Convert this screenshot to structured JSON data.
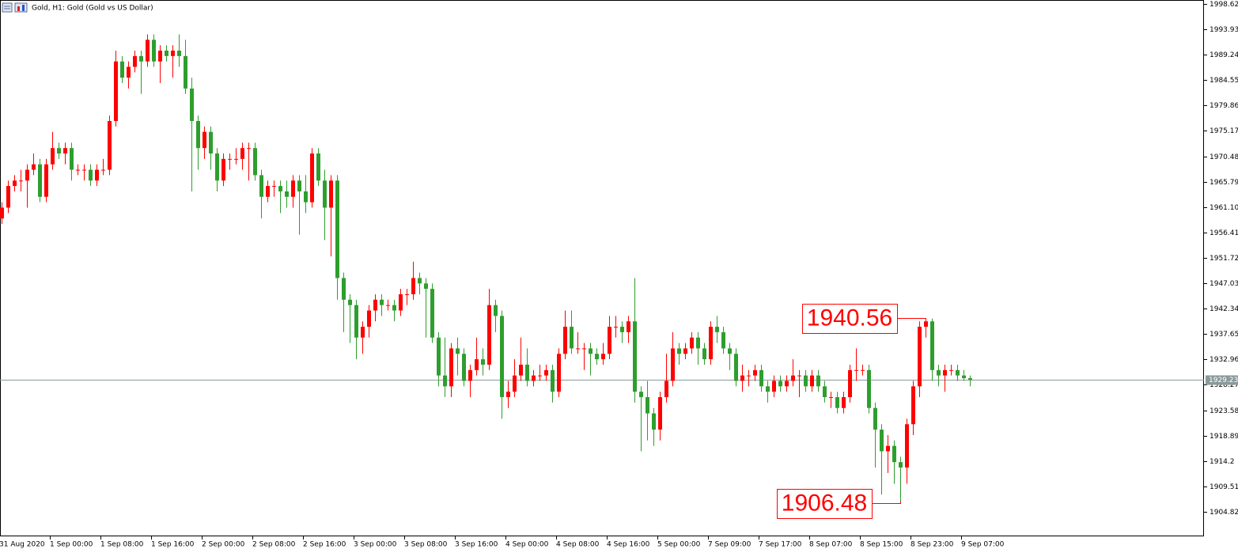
{
  "chart_data": {
    "type": "candlestick",
    "title": "Gold, H1:  Gold (Gold vs US Dollar)",
    "up_color": "#ff0000",
    "down_color": "#2e9e2e",
    "ylim": [
      1900.29,
      1999.35
    ],
    "yticks": [
      1998.62,
      1993.93,
      1989.24,
      1984.55,
      1979.86,
      1975.17,
      1970.48,
      1965.79,
      {
        "value": 1961.1,
        "label": "1961.10"
      },
      1956.41,
      1951.72,
      1947.03,
      1942.34,
      1937.65,
      1932.96,
      1928.27,
      1923.58,
      1918.89,
      1914.2,
      1909.51,
      1904.82
    ],
    "x_labels": [
      "31 Aug 2020",
      "1 Sep 00:00",
      "1 Sep 08:00",
      "1 Sep 16:00",
      "2 Sep 00:00",
      "2 Sep 08:00",
      "2 Sep 16:00",
      "3 Sep 00:00",
      "3 Sep 08:00",
      "3 Sep 16:00",
      "4 Sep 00:00",
      "4 Sep 08:00",
      "4 Sep 16:00",
      "5 Sep 00:00",
      "7 Sep 09:00",
      "7 Sep 17:00",
      "8 Sep 07:00",
      "8 Sep 15:00",
      "8 Sep 23:00",
      "9 Sep 07:00"
    ],
    "current_price": 1929.23,
    "open": [
      1959,
      1961,
      1965,
      1966,
      1966,
      1968,
      1969,
      1963,
      1969,
      1972,
      1971,
      1972,
      1968,
      1968,
      1968,
      1966,
      1968,
      1968,
      1977,
      1988,
      1985,
      1987,
      1989,
      1988,
      1992,
      1988,
      1990,
      1989,
      1990,
      1989,
      1983,
      1977,
      1972,
      1975,
      1971,
      1966,
      1970,
      1970,
      1970,
      1972,
      1972,
      1967,
      1963,
      1965,
      1965,
      1964,
      1963,
      1966,
      1964,
      1962,
      1971,
      1966,
      1961,
      1966,
      1948,
      1944,
      1943,
      1937,
      1939,
      1942,
      1944,
      1943,
      1943,
      1942,
      1945,
      1945,
      1948,
      1947,
      1946,
      1937,
      1930,
      1928,
      1935,
      1934,
      1929,
      1931,
      1933,
      1932,
      1943,
      1941,
      1926,
      1927,
      1930,
      1932,
      1929,
      1930,
      1930,
      1931,
      1927,
      1934,
      1939,
      1935,
      1935,
      1935,
      1934,
      1933,
      1934,
      1939,
      1939,
      1938,
      1940,
      1927,
      1926,
      1923,
      1920,
      1926,
      1929,
      1935,
      1934,
      1935,
      1937,
      1935,
      1933,
      1939,
      1938,
      1935,
      1934,
      1929,
      1930,
      1930,
      1931,
      1928,
      1927,
      1929,
      1928,
      1929,
      1930,
      1930,
      1928,
      1930,
      1928,
      1926,
      1926,
      1924,
      1926,
      1931,
      1931,
      1931,
      1924,
      1920,
      1916,
      1917,
      1914,
      1913,
      1921,
      1928,
      1939,
      1940,
      1931,
      1930,
      1931,
      1931,
      1930,
      1929.5
    ],
    "high": [
      1962,
      1966,
      1967,
      1968,
      1969,
      1971,
      1970,
      1970,
      1975,
      1973,
      1973,
      1973,
      1969,
      1969,
      1969,
      1969,
      1970,
      1978,
      1990,
      1989,
      1988,
      1990,
      1990,
      1993,
      1993,
      1991,
      1991,
      1991,
      1993,
      1992,
      1985,
      1978,
      1976,
      1976,
      1972,
      1971,
      1971,
      1972,
      1973,
      1973,
      1973,
      1968,
      1966,
      1966,
      1966,
      1966,
      1967,
      1967,
      1967,
      1972,
      1972,
      1968,
      1967,
      1967,
      1949,
      1945,
      1944,
      1940,
      1943,
      1945,
      1945,
      1944,
      1944,
      1946,
      1946,
      1951,
      1949,
      1948,
      1947,
      1938,
      1937,
      1936,
      1937,
      1935,
      1932,
      1937,
      1935,
      1946,
      1944,
      1942,
      1929,
      1933,
      1937,
      1935,
      1931,
      1932,
      1932,
      1932,
      1935,
      1942,
      1942,
      1938,
      1936,
      1936,
      1935,
      1936,
      1941,
      1941,
      1940,
      1941,
      1948,
      1928,
      1929,
      1924,
      1927,
      1934,
      1938,
      1936,
      1936,
      1938,
      1938,
      1936,
      1940,
      1941,
      1939,
      1936,
      1935,
      1932,
      1931,
      1932,
      1932,
      1929,
      1930,
      1930,
      1930,
      1933,
      1931,
      1931,
      1931,
      1931,
      1929,
      1927,
      1927,
      1927,
      1932,
      1935,
      1932,
      1932,
      1925,
      1921,
      1919,
      1918,
      1915,
      1922,
      1929,
      1940,
      1940.56,
      1940.5,
      1932,
      1932,
      1932,
      1932,
      1931,
      1930
    ],
    "low": [
      1958,
      1960,
      1964,
      1964,
      1961,
      1967,
      1962,
      1962,
      1968,
      1970,
      1969,
      1966,
      1967,
      1966,
      1965,
      1965,
      1967,
      1967,
      1976,
      1984,
      1983,
      1986,
      1982,
      1987,
      1987,
      1984,
      1988,
      1985,
      1987,
      1982,
      1964,
      1968,
      1970,
      1968,
      1964,
      1965,
      1968,
      1969,
      1968,
      1966,
      1966,
      1959,
      1962,
      1963,
      1960,
      1961,
      1961,
      1956,
      1960,
      1961,
      1965,
      1955,
      1952,
      1944,
      1938,
      1936,
      1933,
      1934,
      1937,
      1940,
      1941,
      1942,
      1940,
      1941,
      1943,
      1944,
      1945,
      1937,
      1936,
      1928,
      1926,
      1926,
      1930,
      1928,
      1926,
      1930,
      1930,
      1931,
      1938,
      1922,
      1924,
      1926,
      1929,
      1928,
      1928,
      1929,
      1929,
      1925,
      1926,
      1933,
      1934,
      1934,
      1931,
      1930,
      1932,
      1932,
      1933,
      1937,
      1936,
      1936,
      1925,
      1916,
      1918,
      1917,
      1918,
      1925,
      1928,
      1932,
      1933,
      1934,
      1932,
      1932,
      1932,
      1936,
      1934,
      1931,
      1928,
      1927,
      1928,
      1929,
      1927,
      1925,
      1926,
      1927,
      1927,
      1928,
      1926,
      1927,
      1927,
      1927,
      1925,
      1924,
      1923,
      1923,
      1925,
      1929,
      1930,
      1923,
      1913,
      1908,
      1912,
      1910,
      1906.48,
      1910,
      1919,
      1926,
      1937,
      1929,
      1928,
      1927,
      1930,
      1929,
      1929,
      1928
    ],
    "close": [
      1961,
      1965,
      1966,
      1966,
      1968,
      1969,
      1963,
      1969,
      1972,
      1971,
      1972,
      1968,
      1968,
      1968,
      1966,
      1968,
      1968,
      1977,
      1988,
      1985,
      1987,
      1989,
      1988,
      1992,
      1988,
      1990,
      1989,
      1990,
      1989,
      1983,
      1977,
      1972,
      1975,
      1971,
      1966,
      1970,
      1970,
      1970,
      1972,
      1972,
      1967,
      1963,
      1965,
      1965,
      1964,
      1963,
      1966,
      1964,
      1962,
      1971,
      1966,
      1961,
      1966,
      1948,
      1944,
      1943,
      1937,
      1939,
      1942,
      1944,
      1943,
      1943,
      1942,
      1945,
      1945,
      1948,
      1947,
      1946,
      1937,
      1930,
      1928,
      1935,
      1934,
      1929,
      1931,
      1933,
      1932,
      1943,
      1941,
      1926,
      1927,
      1930,
      1932,
      1929,
      1930,
      1930,
      1931,
      1927,
      1934,
      1939,
      1935,
      1935,
      1935,
      1934,
      1933,
      1934,
      1939,
      1939,
      1938,
      1940,
      1927,
      1926,
      1923,
      1920,
      1926,
      1929,
      1935,
      1934,
      1935,
      1937,
      1935,
      1933,
      1939,
      1938,
      1935,
      1934,
      1929,
      1930,
      1930,
      1931,
      1928,
      1927,
      1929,
      1928,
      1929,
      1930,
      1930,
      1928,
      1930,
      1928,
      1926,
      1926,
      1924,
      1926,
      1931,
      1931,
      1931,
      1924,
      1920,
      1916,
      1917,
      1914,
      1913,
      1921,
      1928,
      1939,
      1940,
      1931,
      1930,
      1931,
      1931,
      1930,
      1929.5,
      1929.23
    ]
  }
}
